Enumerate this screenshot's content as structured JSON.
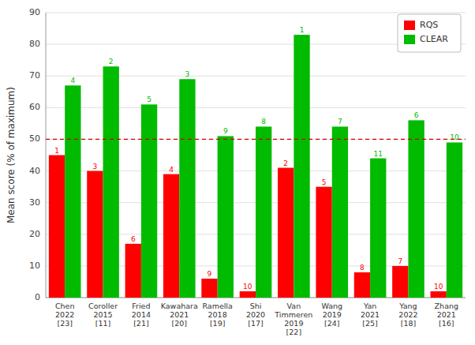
{
  "chart_data": {
    "type": "bar",
    "categories": [
      "Chen\n2022\n[23]",
      "Coroller\n2015\n[11]",
      "Fried\n2014\n[21]",
      "Kawahara\n2021\n[20]",
      "Ramella\n2018\n[19]",
      "Shi\n2020\n[17]",
      "Van\nTimmeren\n2019\n[22]",
      "Wang\n2019\n[24]",
      "Yan\n2021\n[25]",
      "Yang\n2022\n[18]",
      "Zhang\n2021\n[16]"
    ],
    "series": [
      {
        "name": "RQS",
        "color": "#ff0000",
        "values": [
          45,
          40,
          17,
          39,
          6,
          2,
          41,
          35,
          8,
          10,
          2
        ],
        "ranks": [
          1,
          3,
          6,
          4,
          9,
          10,
          2,
          5,
          8,
          7,
          10
        ]
      },
      {
        "name": "CLEAR",
        "color": "#00bb00",
        "values": [
          67,
          73,
          61,
          69,
          51,
          54,
          83,
          54,
          44,
          56,
          49
        ],
        "ranks": [
          4,
          2,
          5,
          3,
          9,
          8,
          1,
          7,
          11,
          6,
          10
        ]
      }
    ],
    "reference_lines": [
      {
        "value": 50,
        "color": "#cc0000",
        "line_style": "dashed"
      }
    ],
    "ylabel": "Mean score (% of maximum)",
    "ylim": [
      0,
      90
    ],
    "yticks": [
      0,
      10,
      20,
      30,
      40,
      50,
      60,
      70,
      80,
      90
    ],
    "grid": true,
    "legend": "upper right"
  }
}
